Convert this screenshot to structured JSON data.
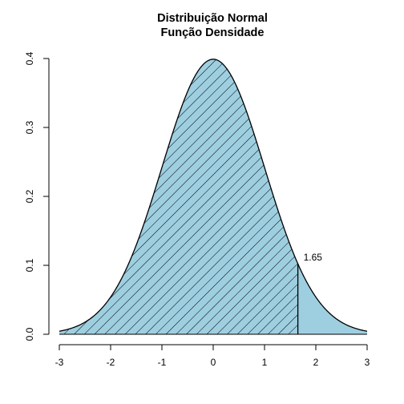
{
  "chart_data": {
    "type": "area",
    "title": "Distribuição Normal",
    "subtitle": "Função Densidade",
    "xlabel": "",
    "ylabel": "",
    "distribution": "standard normal",
    "mean": 0,
    "sd": 1,
    "xlim": [
      -3,
      3
    ],
    "ylim": [
      0,
      0.4
    ],
    "x_ticks": [
      "-3",
      "-2",
      "-1",
      "0",
      "1",
      "2",
      "3"
    ],
    "y_ticks": [
      "0.0",
      "0.1",
      "0.2",
      "0.3",
      "0.4"
    ],
    "x": [
      -3.0,
      -2.5,
      -2.0,
      -1.5,
      -1.0,
      -0.5,
      0.0,
      0.5,
      1.0,
      1.5,
      1.65,
      2.0,
      2.5,
      3.0
    ],
    "y": [
      0.0044,
      0.0175,
      0.054,
      0.1295,
      0.242,
      0.3521,
      0.3989,
      0.3521,
      0.242,
      0.1295,
      0.1023,
      0.054,
      0.0175,
      0.0044
    ],
    "fill_color": "#9ecfe0",
    "hatched_region": {
      "from": -3,
      "to": 1.65
    },
    "cutoff": {
      "x": 1.65,
      "label": "1.65"
    },
    "grid": false,
    "legend": "none"
  }
}
